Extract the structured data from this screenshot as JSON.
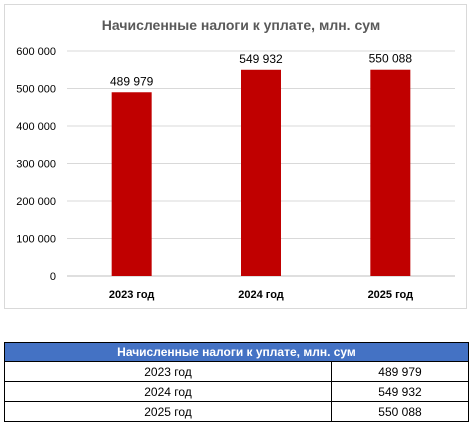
{
  "chart_data": {
    "type": "bar",
    "title": "Начисленные налоги к уплате, млн. сум",
    "categories": [
      "2023 год",
      "2024 год",
      "2025 год"
    ],
    "values": [
      489979,
      549932,
      550088
    ],
    "value_labels": [
      "489 979",
      "549 932",
      "550 088"
    ],
    "ylim": [
      0,
      600000
    ],
    "yticks": [
      0,
      100000,
      200000,
      300000,
      400000,
      500000,
      600000
    ],
    "ytick_labels": [
      "0",
      "100 000",
      "200 000",
      "300 000",
      "400 000",
      "500 000",
      "600 000"
    ],
    "xlabel": "",
    "ylabel": "",
    "grid": true,
    "bar_color": "#c00000"
  },
  "table": {
    "header": "Начисленные налоги к уплате, млн. сум",
    "rows": [
      {
        "year": "2023 год",
        "value": "489 979"
      },
      {
        "year": "2024 год",
        "value": "549 932"
      },
      {
        "year": "2025 год",
        "value": "550 088"
      }
    ]
  }
}
